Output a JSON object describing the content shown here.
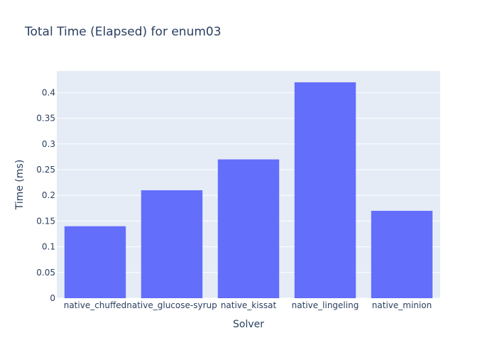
{
  "chart_data": {
    "type": "bar",
    "title": "Total Time (Elapsed) for enum03",
    "xlabel": "Solver",
    "ylabel": "Time (ms)",
    "categories": [
      "native_chuffed",
      "native_glucose-syrup",
      "native_kissat",
      "native_lingeling",
      "native_minion"
    ],
    "values": [
      0.14,
      0.21,
      0.27,
      0.42,
      0.17
    ],
    "ylim": [
      0,
      0.442
    ],
    "yticks": [
      0,
      0.05,
      0.1,
      0.15,
      0.2,
      0.25,
      0.3,
      0.35,
      0.4
    ],
    "ytick_labels": [
      "0",
      "0.05",
      "0.1",
      "0.15",
      "0.2",
      "0.25",
      "0.3",
      "0.35",
      "0.4"
    ],
    "grid": true,
    "colors": {
      "bar": "#636efa",
      "plot_bg": "#e5ecf6",
      "grid": "#ffffff",
      "text": "#2a3f5f"
    }
  }
}
